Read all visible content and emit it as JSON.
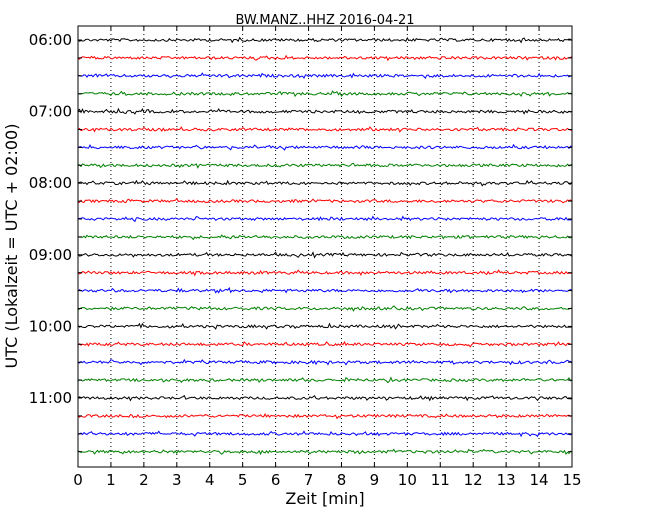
{
  "chart_data": {
    "type": "line",
    "title": "BW.MANZ..HHZ 2016-04-21",
    "xlabel": "Zeit  [min]",
    "ylabel": "UTC (Lokalzeit = UTC + 02:00)",
    "xlim": [
      0,
      15
    ],
    "x_ticks": [
      "0",
      "1",
      "2",
      "3",
      "4",
      "5",
      "6",
      "7",
      "8",
      "9",
      "10",
      "11",
      "12",
      "13",
      "14",
      "15"
    ],
    "y_tick_labels": [
      "06:00",
      "07:00",
      "08:00",
      "09:00",
      "10:00",
      "11:00"
    ],
    "trace_count": 24,
    "trace_interval_min": 15,
    "grid": "vertical dotted",
    "traces": [
      {
        "start": "06:00",
        "color": "#000000"
      },
      {
        "start": "06:15",
        "color": "#ff0000"
      },
      {
        "start": "06:30",
        "color": "#0000ff"
      },
      {
        "start": "06:45",
        "color": "#008000"
      },
      {
        "start": "07:00",
        "color": "#000000"
      },
      {
        "start": "07:15",
        "color": "#ff0000"
      },
      {
        "start": "07:30",
        "color": "#0000ff"
      },
      {
        "start": "07:45",
        "color": "#008000"
      },
      {
        "start": "08:00",
        "color": "#000000"
      },
      {
        "start": "08:15",
        "color": "#ff0000"
      },
      {
        "start": "08:30",
        "color": "#0000ff"
      },
      {
        "start": "08:45",
        "color": "#008000"
      },
      {
        "start": "09:00",
        "color": "#000000"
      },
      {
        "start": "09:15",
        "color": "#ff0000"
      },
      {
        "start": "09:30",
        "color": "#0000ff"
      },
      {
        "start": "09:45",
        "color": "#008000"
      },
      {
        "start": "10:00",
        "color": "#000000"
      },
      {
        "start": "10:15",
        "color": "#ff0000"
      },
      {
        "start": "10:30",
        "color": "#0000ff"
      },
      {
        "start": "10:45",
        "color": "#008000"
      },
      {
        "start": "11:00",
        "color": "#000000"
      },
      {
        "start": "11:15",
        "color": "#ff0000"
      },
      {
        "start": "11:30",
        "color": "#0000ff"
      },
      {
        "start": "11:45",
        "color": "#008000"
      }
    ]
  }
}
